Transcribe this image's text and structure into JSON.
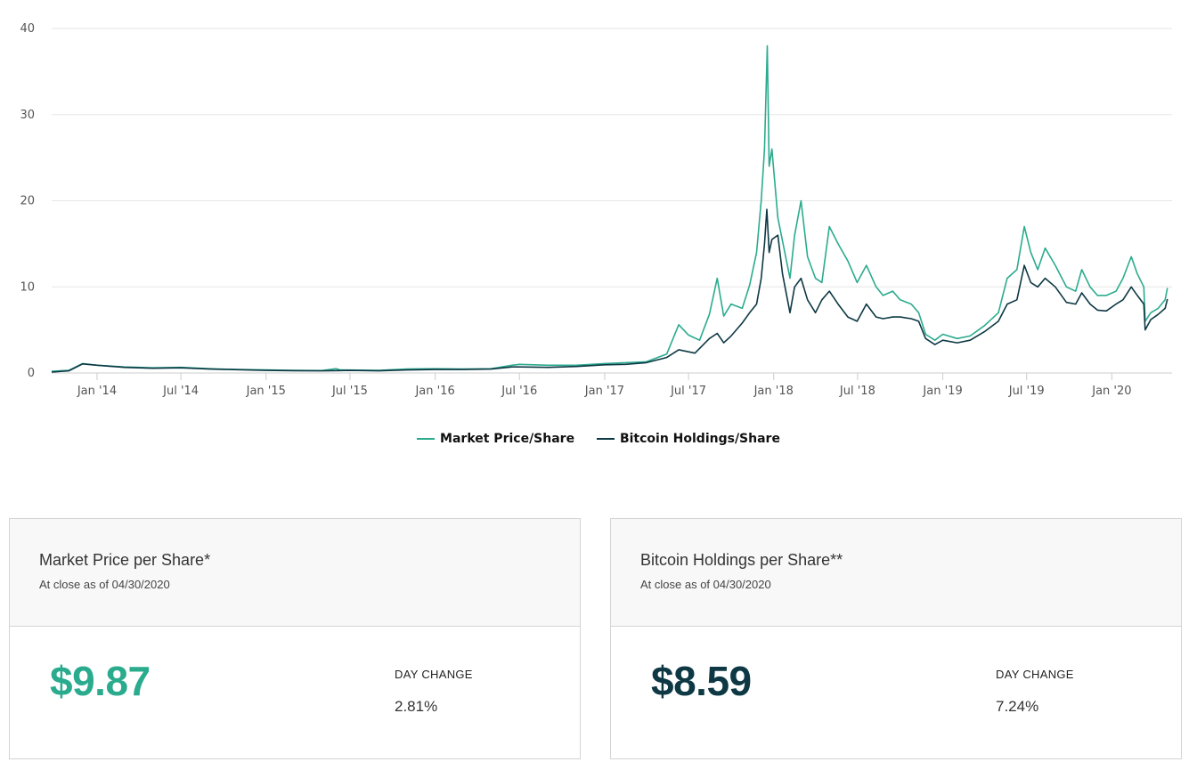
{
  "chart_data": {
    "type": "line",
    "title": "",
    "xlabel": "",
    "ylabel": "",
    "ylim": [
      0,
      40
    ],
    "yticks": [
      0,
      10,
      20,
      30,
      40
    ],
    "xlim": [
      "2013-09-25",
      "2020-05-10"
    ],
    "xticks": [
      {
        "date": "2014-01-01",
        "label": "Jan '14"
      },
      {
        "date": "2014-07-01",
        "label": "Jul '14"
      },
      {
        "date": "2015-01-01",
        "label": "Jan '15"
      },
      {
        "date": "2015-07-01",
        "label": "Jul '15"
      },
      {
        "date": "2016-01-01",
        "label": "Jan '16"
      },
      {
        "date": "2016-07-01",
        "label": "Jul '16"
      },
      {
        "date": "2017-01-01",
        "label": "Jan '17"
      },
      {
        "date": "2017-07-01",
        "label": "Jul '17"
      },
      {
        "date": "2018-01-01",
        "label": "Jan '18"
      },
      {
        "date": "2018-07-01",
        "label": "Jul '18"
      },
      {
        "date": "2019-01-01",
        "label": "Jan '19"
      },
      {
        "date": "2019-07-01",
        "label": "Jul '19"
      },
      {
        "date": "2020-01-01",
        "label": "Jan '20"
      }
    ],
    "grid": true,
    "legend_position": "bottom-center",
    "series": [
      {
        "name": "Market Price/Share",
        "color": "#2bab8e",
        "points": [
          [
            "2013-09-25",
            0.2
          ],
          [
            "2013-11-01",
            0.3
          ],
          [
            "2013-12-01",
            1.1
          ],
          [
            "2014-01-01",
            0.9
          ],
          [
            "2014-03-01",
            0.7
          ],
          [
            "2014-05-01",
            0.6
          ],
          [
            "2014-07-01",
            0.65
          ],
          [
            "2014-09-01",
            0.5
          ],
          [
            "2014-11-01",
            0.4
          ],
          [
            "2015-01-01",
            0.35
          ],
          [
            "2015-03-01",
            0.3
          ],
          [
            "2015-05-01",
            0.28
          ],
          [
            "2015-06-01",
            0.5
          ],
          [
            "2015-06-10",
            0.35
          ],
          [
            "2015-09-01",
            0.3
          ],
          [
            "2015-11-01",
            0.45
          ],
          [
            "2016-01-01",
            0.5
          ],
          [
            "2016-03-01",
            0.45
          ],
          [
            "2016-05-01",
            0.5
          ],
          [
            "2016-06-15",
            0.9
          ],
          [
            "2016-07-01",
            1.0
          ],
          [
            "2016-09-01",
            0.9
          ],
          [
            "2016-11-01",
            0.9
          ],
          [
            "2017-01-01",
            1.1
          ],
          [
            "2017-02-15",
            1.2
          ],
          [
            "2017-04-01",
            1.3
          ],
          [
            "2017-05-15",
            2.2
          ],
          [
            "2017-06-10",
            5.6
          ],
          [
            "2017-07-01",
            4.4
          ],
          [
            "2017-07-25",
            3.8
          ],
          [
            "2017-08-15",
            6.8
          ],
          [
            "2017-09-01",
            11.0
          ],
          [
            "2017-09-15",
            6.6
          ],
          [
            "2017-10-01",
            8.0
          ],
          [
            "2017-10-25",
            7.5
          ],
          [
            "2017-11-10",
            10.2
          ],
          [
            "2017-11-25",
            14.0
          ],
          [
            "2017-12-05",
            20.0
          ],
          [
            "2017-12-12",
            26.0
          ],
          [
            "2017-12-18",
            38.0
          ],
          [
            "2017-12-22",
            24.0
          ],
          [
            "2017-12-28",
            26.0
          ],
          [
            "2018-01-10",
            18.0
          ],
          [
            "2018-01-25",
            14.0
          ],
          [
            "2018-02-05",
            11.0
          ],
          [
            "2018-02-15",
            16.0
          ],
          [
            "2018-03-01",
            20.0
          ],
          [
            "2018-03-15",
            13.5
          ],
          [
            "2018-04-01",
            11.0
          ],
          [
            "2018-04-15",
            10.5
          ],
          [
            "2018-05-01",
            17.0
          ],
          [
            "2018-05-20",
            15.0
          ],
          [
            "2018-06-10",
            13.0
          ],
          [
            "2018-06-30",
            10.5
          ],
          [
            "2018-07-20",
            12.5
          ],
          [
            "2018-08-10",
            10.0
          ],
          [
            "2018-08-25",
            9.0
          ],
          [
            "2018-09-15",
            9.5
          ],
          [
            "2018-10-01",
            8.5
          ],
          [
            "2018-10-25",
            8.0
          ],
          [
            "2018-11-10",
            7.0
          ],
          [
            "2018-11-25",
            4.5
          ],
          [
            "2018-12-15",
            3.8
          ],
          [
            "2019-01-01",
            4.5
          ],
          [
            "2019-02-01",
            4.0
          ],
          [
            "2019-03-01",
            4.3
          ],
          [
            "2019-04-01",
            5.5
          ],
          [
            "2019-05-01",
            7.0
          ],
          [
            "2019-05-20",
            11.0
          ],
          [
            "2019-06-10",
            12.0
          ],
          [
            "2019-06-26",
            17.0
          ],
          [
            "2019-07-10",
            14.0
          ],
          [
            "2019-07-25",
            12.0
          ],
          [
            "2019-08-10",
            14.5
          ],
          [
            "2019-09-01",
            12.5
          ],
          [
            "2019-09-25",
            10.0
          ],
          [
            "2019-10-15",
            9.5
          ],
          [
            "2019-10-28",
            12.0
          ],
          [
            "2019-11-15",
            10.0
          ],
          [
            "2019-12-01",
            9.0
          ],
          [
            "2019-12-20",
            9.0
          ],
          [
            "2020-01-10",
            9.5
          ],
          [
            "2020-01-25",
            11.0
          ],
          [
            "2020-02-12",
            13.5
          ],
          [
            "2020-02-25",
            11.5
          ],
          [
            "2020-03-10",
            10.0
          ],
          [
            "2020-03-13",
            6.0
          ],
          [
            "2020-03-25",
            7.0
          ],
          [
            "2020-04-10",
            7.5
          ],
          [
            "2020-04-25",
            8.5
          ],
          [
            "2020-04-30",
            9.87
          ]
        ]
      },
      {
        "name": "Bitcoin Holdings/Share",
        "color": "#0d3844",
        "points": [
          [
            "2013-09-25",
            0.1
          ],
          [
            "2013-11-01",
            0.25
          ],
          [
            "2013-12-01",
            1.05
          ],
          [
            "2014-01-01",
            0.9
          ],
          [
            "2014-03-01",
            0.65
          ],
          [
            "2014-05-01",
            0.55
          ],
          [
            "2014-07-01",
            0.6
          ],
          [
            "2014-09-01",
            0.45
          ],
          [
            "2014-11-01",
            0.38
          ],
          [
            "2015-01-01",
            0.3
          ],
          [
            "2015-03-01",
            0.27
          ],
          [
            "2015-05-01",
            0.25
          ],
          [
            "2015-07-01",
            0.3
          ],
          [
            "2015-09-01",
            0.25
          ],
          [
            "2015-11-01",
            0.35
          ],
          [
            "2016-01-01",
            0.4
          ],
          [
            "2016-03-01",
            0.4
          ],
          [
            "2016-05-01",
            0.45
          ],
          [
            "2016-06-15",
            0.7
          ],
          [
            "2016-07-01",
            0.7
          ],
          [
            "2016-09-01",
            0.65
          ],
          [
            "2016-11-01",
            0.75
          ],
          [
            "2017-01-01",
            0.95
          ],
          [
            "2017-02-15",
            1.0
          ],
          [
            "2017-04-01",
            1.2
          ],
          [
            "2017-05-15",
            1.8
          ],
          [
            "2017-06-10",
            2.7
          ],
          [
            "2017-07-15",
            2.3
          ],
          [
            "2017-08-15",
            4.0
          ],
          [
            "2017-09-01",
            4.6
          ],
          [
            "2017-09-15",
            3.5
          ],
          [
            "2017-10-01",
            4.3
          ],
          [
            "2017-10-25",
            5.8
          ],
          [
            "2017-11-10",
            7.0
          ],
          [
            "2017-11-25",
            8.0
          ],
          [
            "2017-12-05",
            11.0
          ],
          [
            "2017-12-12",
            15.0
          ],
          [
            "2017-12-17",
            19.0
          ],
          [
            "2017-12-22",
            14.0
          ],
          [
            "2017-12-28",
            15.5
          ],
          [
            "2018-01-10",
            16.0
          ],
          [
            "2018-01-20",
            11.5
          ],
          [
            "2018-02-05",
            7.0
          ],
          [
            "2018-02-15",
            10.0
          ],
          [
            "2018-03-01",
            11.0
          ],
          [
            "2018-03-15",
            8.5
          ],
          [
            "2018-04-01",
            7.0
          ],
          [
            "2018-04-15",
            8.5
          ],
          [
            "2018-05-01",
            9.5
          ],
          [
            "2018-05-20",
            8.0
          ],
          [
            "2018-06-10",
            6.5
          ],
          [
            "2018-06-30",
            6.0
          ],
          [
            "2018-07-20",
            8.0
          ],
          [
            "2018-08-10",
            6.5
          ],
          [
            "2018-08-25",
            6.3
          ],
          [
            "2018-09-15",
            6.5
          ],
          [
            "2018-10-01",
            6.5
          ],
          [
            "2018-10-25",
            6.3
          ],
          [
            "2018-11-10",
            6.0
          ],
          [
            "2018-11-25",
            4.0
          ],
          [
            "2018-12-15",
            3.3
          ],
          [
            "2019-01-01",
            3.8
          ],
          [
            "2019-02-01",
            3.5
          ],
          [
            "2019-03-01",
            3.8
          ],
          [
            "2019-04-01",
            4.8
          ],
          [
            "2019-05-01",
            6.0
          ],
          [
            "2019-05-20",
            8.0
          ],
          [
            "2019-06-10",
            8.5
          ],
          [
            "2019-06-26",
            12.5
          ],
          [
            "2019-07-10",
            10.5
          ],
          [
            "2019-07-25",
            10.0
          ],
          [
            "2019-08-10",
            11.0
          ],
          [
            "2019-09-01",
            10.0
          ],
          [
            "2019-09-25",
            8.2
          ],
          [
            "2019-10-15",
            8.0
          ],
          [
            "2019-10-28",
            9.3
          ],
          [
            "2019-11-15",
            8.0
          ],
          [
            "2019-12-01",
            7.3
          ],
          [
            "2019-12-20",
            7.2
          ],
          [
            "2020-01-10",
            8.0
          ],
          [
            "2020-01-25",
            8.5
          ],
          [
            "2020-02-12",
            10.0
          ],
          [
            "2020-02-25",
            9.0
          ],
          [
            "2020-03-10",
            8.0
          ],
          [
            "2020-03-13",
            5.0
          ],
          [
            "2020-03-25",
            6.2
          ],
          [
            "2020-04-10",
            6.8
          ],
          [
            "2020-04-25",
            7.5
          ],
          [
            "2020-04-30",
            8.59
          ]
        ]
      }
    ]
  },
  "cards": [
    {
      "title": "Market Price per Share*",
      "subtitle": "At close as of 04/30/2020",
      "value": "$9.87",
      "value_color": "#2bab8e",
      "change_label": "DAY CHANGE",
      "change_value": "2.81%"
    },
    {
      "title": "Bitcoin Holdings per Share**",
      "subtitle": "At close as of 04/30/2020",
      "value": "$8.59",
      "value_color": "#0d3844",
      "change_label": "DAY CHANGE",
      "change_value": "7.24%"
    }
  ]
}
